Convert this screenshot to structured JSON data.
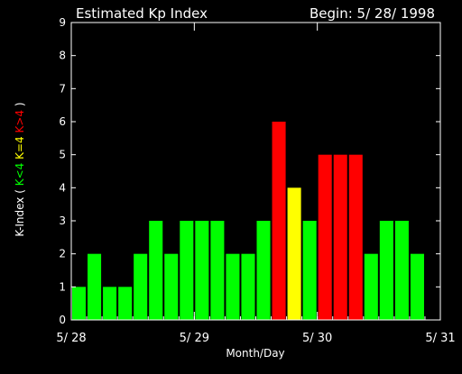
{
  "header": {
    "title": "Estimated Kp Index",
    "begin": "Begin: 5/ 28/ 1998"
  },
  "colors": {
    "background": "#000000",
    "axes": "#ffffff",
    "low": "#00ff00",
    "equal": "#ffff00",
    "high": "#ff0000"
  },
  "chart_data": {
    "type": "bar",
    "title": "Estimated Kp Index",
    "subtitle": "Begin: 5/ 28/ 1998",
    "xlabel": "Month/Day",
    "ylabel_parts": [
      {
        "text": "K-Index ( ",
        "color": "#ffffff"
      },
      {
        "text": "K<4",
        "color": "#00ff00"
      },
      {
        "text": " ",
        "color": "#ffffff"
      },
      {
        "text": "K=4",
        "color": "#ffff00"
      },
      {
        "text": " ",
        "color": "#ffffff"
      },
      {
        "text": "K>4",
        "color": "#ff0000"
      },
      {
        "text": " )",
        "color": "#ffffff"
      }
    ],
    "ylim": [
      0,
      9
    ],
    "yticks": [
      "0",
      "1",
      "2",
      "3",
      "4",
      "5",
      "6",
      "7",
      "8",
      "9"
    ],
    "xticks": [
      "5/ 28",
      "5/ 29",
      "5/ 30",
      "5/ 31"
    ],
    "interval_hours": 3,
    "values": [
      1,
      2,
      1,
      1,
      2,
      3,
      2,
      3,
      3,
      3,
      2,
      2,
      3,
      6,
      4,
      3,
      5,
      5,
      5,
      2,
      3,
      3,
      2
    ],
    "color_rule": "green if K<4, yellow if K=4, red if K>4",
    "grid": false,
    "legend": "none"
  }
}
